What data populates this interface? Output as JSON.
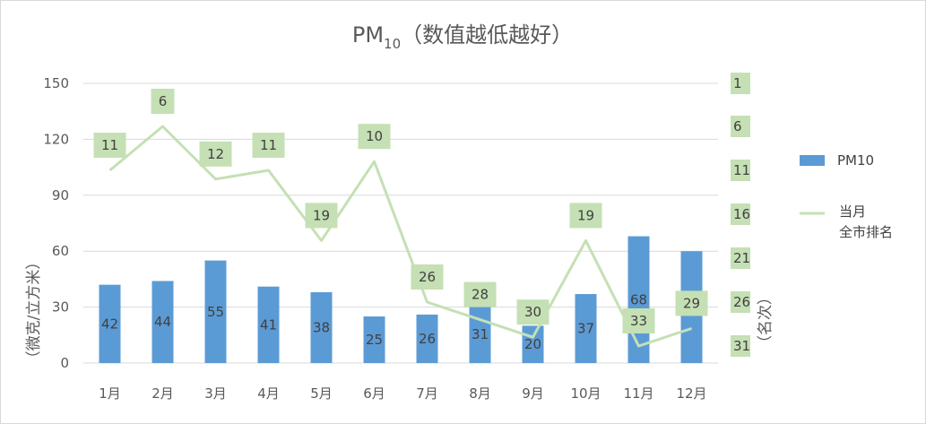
{
  "chart_data": {
    "type": "bar",
    "title": "PM",
    "title_subscript": "10",
    "title_suffix": "（数值越低越好）",
    "categories": [
      "1月",
      "2月",
      "3月",
      "4月",
      "5月",
      "6月",
      "7月",
      "8月",
      "9月",
      "10月",
      "11月",
      "12月"
    ],
    "series": [
      {
        "name": "PM10",
        "type": "bar",
        "axis": "left",
        "color": "#5b9bd5",
        "values": [
          42,
          44,
          55,
          41,
          38,
          25,
          26,
          31,
          20,
          37,
          68,
          60
        ]
      },
      {
        "name": "当月全市排名",
        "name_lines": [
          "当月",
          "全市排名"
        ],
        "type": "line",
        "axis": "right",
        "color": "#c5e0b4",
        "values": [
          11,
          6,
          12,
          11,
          19,
          10,
          26,
          28,
          30,
          19,
          33,
          29
        ]
      }
    ],
    "y_left": {
      "title": "（微克/立方米）",
      "range": [
        0,
        150
      ],
      "ticks": [
        "0",
        "30",
        "60",
        "90",
        "120",
        "150"
      ]
    },
    "y_right": {
      "title": "（名次）",
      "range": [
        1,
        31
      ],
      "inverted": true,
      "ticks": [
        "1",
        "6",
        "11",
        "16",
        "21",
        "26",
        "31"
      ]
    },
    "grid": true,
    "legend_position": "right",
    "label_box_color": "#c5e0b4",
    "axis_label_color": "#595959",
    "gridline_color": "#d9d9d9"
  }
}
